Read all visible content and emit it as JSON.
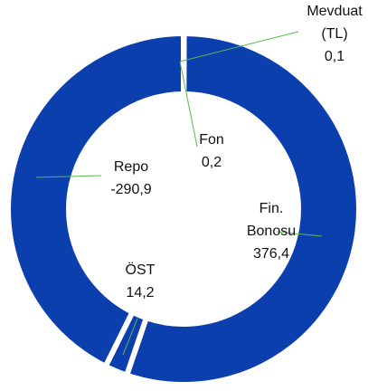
{
  "chart_data": {
    "type": "donut",
    "categories": [
      "Mevduat (TL)",
      "Fon",
      "Fin. Bonosu",
      "ÖST",
      "Repo"
    ],
    "values": [
      0.1,
      0.2,
      376.4,
      14.2,
      -290.9
    ],
    "value_labels": [
      "0,1",
      "0,2",
      "376,4",
      "14,2",
      "-290,9"
    ],
    "color": "#0c3fae"
  }
}
